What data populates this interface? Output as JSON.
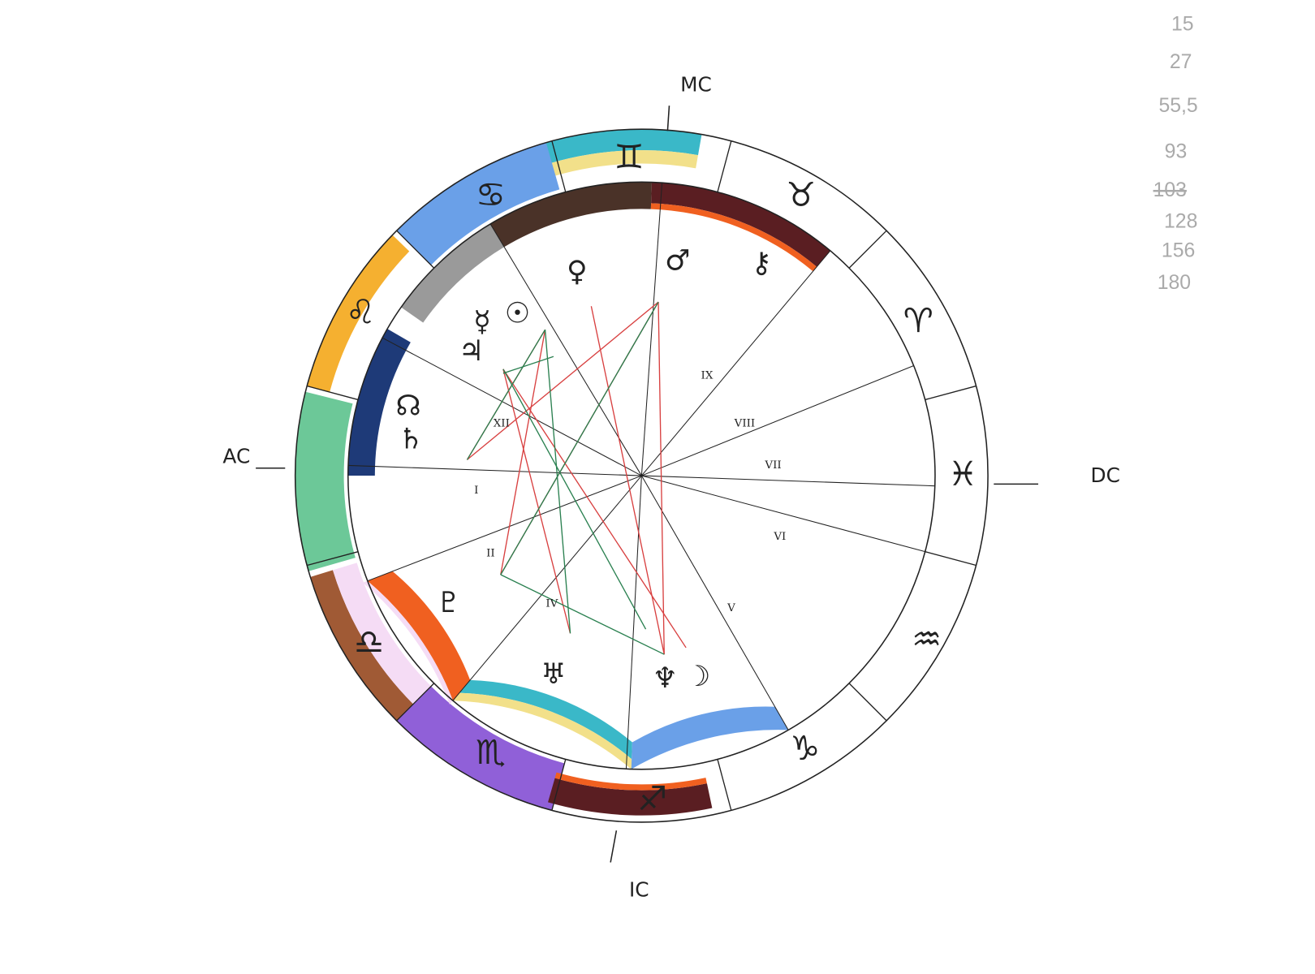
{
  "angles": {
    "mc": "MC",
    "ac": "AC",
    "dc": "DC",
    "ic": "IC"
  },
  "signs": [
    "♊",
    "♉",
    "♈",
    "♓",
    "♒",
    "♑",
    "♐",
    "♏",
    "♎",
    "♌",
    "♋"
  ],
  "planets": [
    "♀",
    "♂",
    "⚷",
    "☉",
    "☿",
    "♃",
    "☊",
    "♄",
    "♇",
    "♅",
    "♆",
    "☽"
  ],
  "houses": [
    "I",
    "II",
    "IV",
    "V",
    "VI",
    "VII",
    "VIII",
    "IX",
    "XII"
  ],
  "margin_notes": [
    "15",
    "27",
    "55,5",
    "93",
    "103",
    "128",
    "156",
    "180"
  ]
}
